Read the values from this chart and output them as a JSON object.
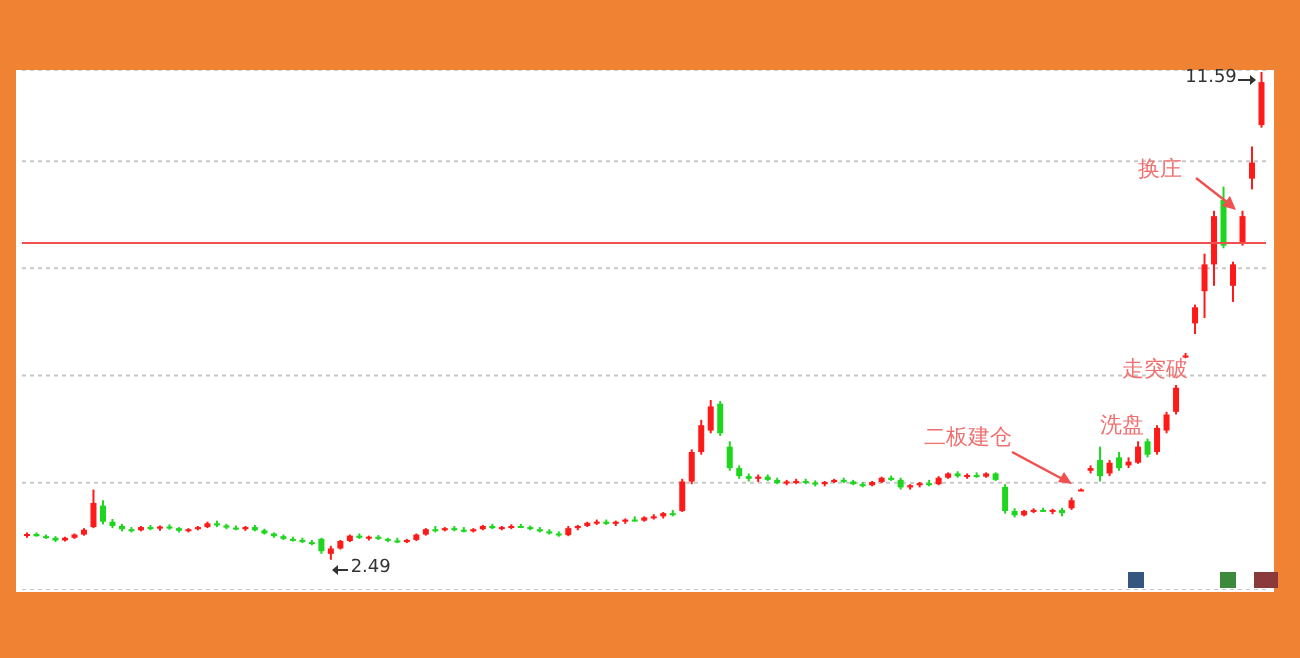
{
  "chart_data": {
    "type": "candlestick",
    "grid": "y",
    "tick_labels": false,
    "categories": [
      null,
      null,
      null,
      null,
      null,
      null,
      null,
      null,
      null,
      null,
      null,
      null,
      null,
      null,
      null,
      null,
      null,
      null,
      null,
      null,
      null,
      null,
      null,
      null,
      null,
      null,
      null,
      null,
      null,
      null,
      null,
      null,
      null,
      null,
      null,
      null,
      null,
      null,
      null,
      null,
      null,
      null,
      null,
      null,
      null,
      null,
      null,
      null,
      null,
      null,
      null,
      null,
      null,
      null,
      null,
      null,
      null,
      null,
      null,
      null,
      null,
      null,
      null,
      null,
      null,
      null,
      null,
      null,
      null,
      null,
      null,
      null,
      null,
      null,
      null,
      null,
      null,
      null,
      null,
      null,
      null,
      null,
      null,
      null,
      null,
      null,
      null,
      null,
      null,
      null,
      null,
      null,
      null,
      null,
      null,
      null,
      null,
      null,
      null,
      null,
      null,
      null,
      null,
      null,
      null,
      null,
      null,
      null,
      null,
      null,
      null,
      null,
      null,
      null,
      null,
      null,
      null,
      null,
      null,
      null,
      null,
      null,
      null,
      null,
      null,
      null,
      null,
      null,
      null,
      null,
      null
    ],
    "ohlc": [
      [
        2.95,
        3.0,
        2.9,
        2.97
      ],
      [
        2.97,
        3.0,
        2.92,
        2.93
      ],
      [
        2.93,
        2.96,
        2.88,
        2.9
      ],
      [
        2.9,
        2.93,
        2.82,
        2.85
      ],
      [
        2.85,
        2.92,
        2.83,
        2.9
      ],
      [
        2.9,
        2.98,
        2.88,
        2.96
      ],
      [
        2.96,
        3.08,
        2.94,
        3.05
      ],
      [
        3.1,
        3.8,
        3.08,
        3.55
      ],
      [
        3.5,
        3.6,
        3.15,
        3.2
      ],
      [
        3.2,
        3.25,
        3.08,
        3.12
      ],
      [
        3.12,
        3.16,
        3.02,
        3.06
      ],
      [
        3.06,
        3.1,
        3.0,
        3.04
      ],
      [
        3.04,
        3.12,
        3.02,
        3.1
      ],
      [
        3.1,
        3.14,
        3.04,
        3.07
      ],
      [
        3.07,
        3.13,
        3.03,
        3.11
      ],
      [
        3.11,
        3.15,
        3.05,
        3.08
      ],
      [
        3.08,
        3.1,
        3.0,
        3.03
      ],
      [
        3.03,
        3.08,
        3.0,
        3.06
      ],
      [
        3.06,
        3.12,
        3.04,
        3.1
      ],
      [
        3.1,
        3.2,
        3.08,
        3.17
      ],
      [
        3.17,
        3.22,
        3.1,
        3.13
      ],
      [
        3.13,
        3.16,
        3.06,
        3.09
      ],
      [
        3.09,
        3.13,
        3.04,
        3.06
      ],
      [
        3.06,
        3.12,
        3.03,
        3.1
      ],
      [
        3.1,
        3.14,
        3.02,
        3.04
      ],
      [
        3.04,
        3.07,
        2.96,
        2.98
      ],
      [
        2.98,
        3.0,
        2.9,
        2.93
      ],
      [
        2.93,
        2.96,
        2.86,
        2.88
      ],
      [
        2.88,
        2.92,
        2.83,
        2.86
      ],
      [
        2.86,
        2.9,
        2.8,
        2.82
      ],
      [
        2.82,
        2.86,
        2.76,
        2.8
      ],
      [
        2.88,
        2.9,
        2.6,
        2.65
      ],
      [
        2.6,
        2.75,
        2.49,
        2.7
      ],
      [
        2.7,
        2.86,
        2.68,
        2.84
      ],
      [
        2.84,
        2.96,
        2.82,
        2.94
      ],
      [
        2.94,
        2.98,
        2.88,
        2.9
      ],
      [
        2.9,
        2.94,
        2.85,
        2.92
      ],
      [
        2.92,
        2.95,
        2.86,
        2.88
      ],
      [
        2.88,
        2.9,
        2.82,
        2.85
      ],
      [
        2.85,
        2.9,
        2.8,
        2.82
      ],
      [
        2.82,
        2.88,
        2.8,
        2.86
      ],
      [
        2.86,
        2.98,
        2.84,
        2.96
      ],
      [
        2.96,
        3.08,
        2.94,
        3.06
      ],
      [
        3.06,
        3.12,
        3.0,
        3.04
      ],
      [
        3.04,
        3.1,
        3.02,
        3.08
      ],
      [
        3.08,
        3.12,
        3.02,
        3.05
      ],
      [
        3.05,
        3.1,
        3.0,
        3.02
      ],
      [
        3.02,
        3.08,
        3.0,
        3.06
      ],
      [
        3.06,
        3.14,
        3.04,
        3.12
      ],
      [
        3.12,
        3.16,
        3.06,
        3.08
      ],
      [
        3.08,
        3.12,
        3.04,
        3.1
      ],
      [
        3.1,
        3.15,
        3.06,
        3.12
      ],
      [
        3.12,
        3.16,
        3.08,
        3.1
      ],
      [
        3.1,
        3.13,
        3.04,
        3.06
      ],
      [
        3.06,
        3.1,
        3.0,
        3.02
      ],
      [
        3.02,
        3.06,
        2.96,
        2.98
      ],
      [
        2.98,
        3.02,
        2.92,
        2.95
      ],
      [
        2.95,
        3.12,
        2.93,
        3.08
      ],
      [
        3.08,
        3.14,
        3.04,
        3.12
      ],
      [
        3.12,
        3.2,
        3.1,
        3.18
      ],
      [
        3.18,
        3.24,
        3.14,
        3.2
      ],
      [
        3.2,
        3.24,
        3.14,
        3.16
      ],
      [
        3.16,
        3.22,
        3.12,
        3.2
      ],
      [
        3.2,
        3.26,
        3.16,
        3.24
      ],
      [
        3.24,
        3.3,
        3.2,
        3.22
      ],
      [
        3.22,
        3.3,
        3.2,
        3.28
      ],
      [
        3.28,
        3.34,
        3.24,
        3.3
      ],
      [
        3.3,
        3.38,
        3.26,
        3.36
      ],
      [
        3.36,
        3.42,
        3.3,
        3.35
      ],
      [
        3.4,
        4.0,
        3.38,
        3.95
      ],
      [
        3.95,
        4.55,
        3.9,
        4.5
      ],
      [
        4.5,
        5.1,
        4.45,
        5.0
      ],
      [
        4.9,
        5.47,
        4.85,
        5.35
      ],
      [
        5.4,
        5.45,
        4.8,
        4.85
      ],
      [
        4.6,
        4.7,
        4.15,
        4.2
      ],
      [
        4.2,
        4.25,
        4.0,
        4.05
      ],
      [
        4.05,
        4.1,
        3.95,
        4.0
      ],
      [
        4.0,
        4.08,
        3.94,
        4.04
      ],
      [
        4.04,
        4.08,
        3.96,
        3.98
      ],
      [
        3.98,
        4.02,
        3.9,
        3.92
      ],
      [
        3.92,
        3.98,
        3.88,
        3.95
      ],
      [
        3.95,
        4.0,
        3.9,
        3.96
      ],
      [
        3.96,
        4.0,
        3.9,
        3.93
      ],
      [
        3.93,
        3.97,
        3.86,
        3.9
      ],
      [
        3.9,
        3.96,
        3.86,
        3.94
      ],
      [
        3.94,
        4.0,
        3.92,
        3.98
      ],
      [
        3.98,
        4.02,
        3.92,
        3.95
      ],
      [
        3.95,
        3.98,
        3.88,
        3.9
      ],
      [
        3.9,
        3.94,
        3.84,
        3.88
      ],
      [
        3.88,
        3.96,
        3.86,
        3.94
      ],
      [
        3.94,
        4.04,
        3.92,
        4.02
      ],
      [
        4.02,
        4.06,
        3.96,
        3.98
      ],
      [
        3.98,
        4.02,
        3.8,
        3.84
      ],
      [
        3.84,
        3.9,
        3.8,
        3.88
      ],
      [
        3.88,
        3.94,
        3.84,
        3.92
      ],
      [
        3.92,
        3.98,
        3.86,
        3.9
      ],
      [
        3.9,
        4.05,
        3.88,
        4.02
      ],
      [
        4.02,
        4.12,
        4.0,
        4.1
      ],
      [
        4.1,
        4.14,
        4.02,
        4.05
      ],
      [
        4.05,
        4.1,
        4.0,
        4.07
      ],
      [
        4.07,
        4.12,
        4.02,
        4.04
      ],
      [
        4.04,
        4.12,
        4.02,
        4.1
      ],
      [
        4.1,
        4.12,
        3.96,
        3.98
      ],
      [
        3.85,
        3.9,
        3.35,
        3.4
      ],
      [
        3.4,
        3.45,
        3.28,
        3.32
      ],
      [
        3.32,
        3.42,
        3.3,
        3.4
      ],
      [
        3.4,
        3.45,
        3.36,
        3.42
      ],
      [
        3.42,
        3.46,
        3.38,
        3.4
      ],
      [
        3.4,
        3.44,
        3.34,
        3.42
      ],
      [
        3.42,
        3.46,
        3.3,
        3.36
      ],
      [
        3.45,
        3.65,
        3.42,
        3.6
      ],
      [
        3.8,
        3.82,
        3.78,
        3.8
      ],
      [
        4.15,
        4.25,
        4.1,
        4.2
      ],
      [
        4.35,
        4.6,
        3.95,
        4.05
      ],
      [
        4.1,
        4.35,
        4.05,
        4.3
      ],
      [
        4.4,
        4.5,
        4.15,
        4.2
      ],
      [
        4.25,
        4.4,
        4.2,
        4.32
      ],
      [
        4.3,
        4.7,
        4.28,
        4.6
      ],
      [
        4.7,
        4.75,
        4.4,
        4.45
      ],
      [
        4.5,
        5.0,
        4.45,
        4.95
      ],
      [
        4.9,
        5.25,
        4.85,
        5.2
      ],
      [
        5.25,
        5.75,
        5.2,
        5.7
      ],
      [
        6.3,
        6.35,
        6.25,
        6.3
      ],
      [
        6.9,
        7.25,
        6.7,
        7.2
      ],
      [
        7.5,
        8.2,
        7.0,
        8.0
      ],
      [
        8.0,
        9.0,
        7.6,
        8.9
      ],
      [
        9.2,
        9.45,
        8.3,
        8.35
      ],
      [
        7.6,
        8.05,
        7.3,
        8.0
      ],
      [
        8.4,
        9.0,
        8.35,
        8.9
      ],
      [
        9.6,
        10.2,
        9.4,
        9.9
      ],
      [
        10.6,
        11.59,
        10.55,
        11.4
      ]
    ],
    "ref_lines": [
      {
        "axis": "y",
        "value": 8.4,
        "color": "#f05050"
      }
    ],
    "annotations": [
      "2.49",
      "11.59",
      "二板建仓",
      "洗盘",
      "走突破",
      "换庄"
    ]
  }
}
